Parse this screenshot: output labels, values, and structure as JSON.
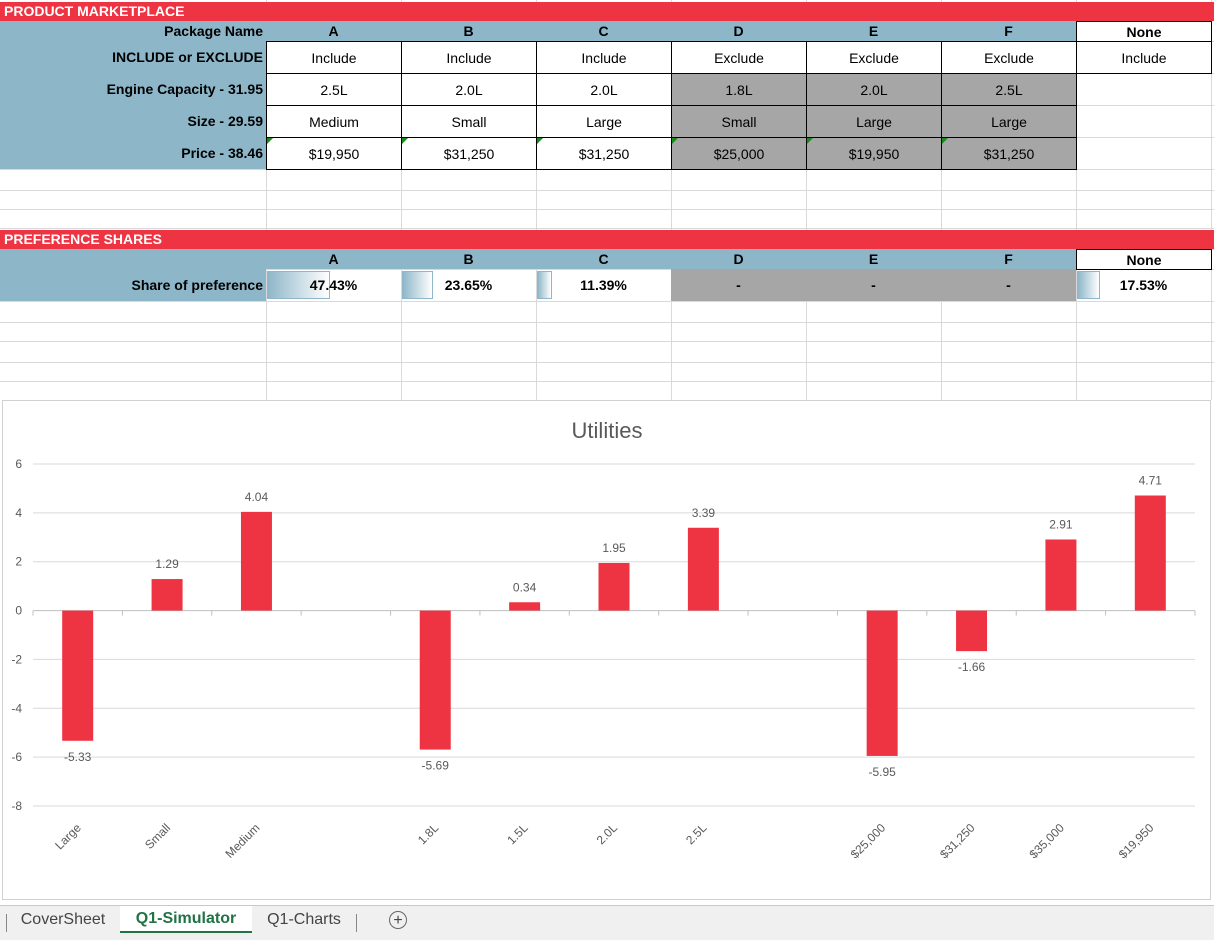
{
  "marketplace": {
    "banner": "PRODUCT MARKETPLACE",
    "row_labels": {
      "package": "Package Name",
      "include": "INCLUDE or EXCLUDE",
      "engine": "Engine Capacity - 31.95",
      "size": "Size - 29.59",
      "price": "Price - 38.46"
    },
    "columns": [
      {
        "name": "A",
        "include": "Include",
        "engine": "2.5L",
        "size": "Medium",
        "price": "$19,950"
      },
      {
        "name": "B",
        "include": "Include",
        "engine": "2.0L",
        "size": "Small",
        "price": "$31,250"
      },
      {
        "name": "C",
        "include": "Include",
        "engine": "2.0L",
        "size": "Large",
        "price": "$31,250"
      },
      {
        "name": "D",
        "include": "Exclude",
        "engine": "1.8L",
        "size": "Small",
        "price": "$25,000"
      },
      {
        "name": "E",
        "include": "Exclude",
        "engine": "2.0L",
        "size": "Large",
        "price": "$19,950"
      },
      {
        "name": "F",
        "include": "Exclude",
        "engine": "2.5L",
        "size": "Large",
        "price": "$31,250"
      }
    ],
    "none": {
      "name": "None",
      "include": "Include"
    }
  },
  "preference": {
    "banner": "PREFERENCE SHARES",
    "row_label": "Share of preference",
    "columns": [
      {
        "name": "A",
        "share": "47.43%",
        "fraction": 0.4743
      },
      {
        "name": "B",
        "share": "23.65%",
        "fraction": 0.2365
      },
      {
        "name": "C",
        "share": "11.39%",
        "fraction": 0.1139
      },
      {
        "name": "D",
        "share": "-"
      },
      {
        "name": "E",
        "share": "-"
      },
      {
        "name": "F",
        "share": "-"
      }
    ],
    "none": {
      "name": "None",
      "share": "17.53%",
      "fraction": 0.1753
    }
  },
  "chart_data": {
    "type": "bar",
    "title": "Utilities",
    "categories": [
      "Large",
      "Small",
      "Medium",
      "",
      "1.8L",
      "1.5L",
      "2.0L",
      "2.5L",
      "",
      "$25,000",
      "$31,250",
      "$35,000",
      "$19,950"
    ],
    "values": [
      -5.33,
      1.29,
      4.04,
      null,
      -5.69,
      0.34,
      1.95,
      3.39,
      null,
      -5.95,
      -1.66,
      2.91,
      4.71
    ],
    "labels": [
      "-5.33",
      "1.29",
      "4.04",
      "",
      "-5.69",
      "0.34",
      "1.95",
      "3.39",
      "",
      "-5.95",
      "-1.66",
      "2.91",
      "4.71"
    ],
    "ylim": [
      -8,
      6
    ],
    "yticks": [
      6,
      4,
      2,
      0,
      -2,
      -4,
      -6,
      -8
    ],
    "bar_color": "#ee3342",
    "xlabel": "",
    "ylabel": ""
  },
  "tabs": {
    "items": [
      "CoverSheet",
      "Q1-Simulator",
      "Q1-Charts"
    ],
    "active": "Q1-Simulator",
    "add_icon": "+"
  },
  "colors": {
    "accent": "#ee3342",
    "header_blue": "#8db6c8",
    "excluded_grey": "#a6a6a6"
  }
}
